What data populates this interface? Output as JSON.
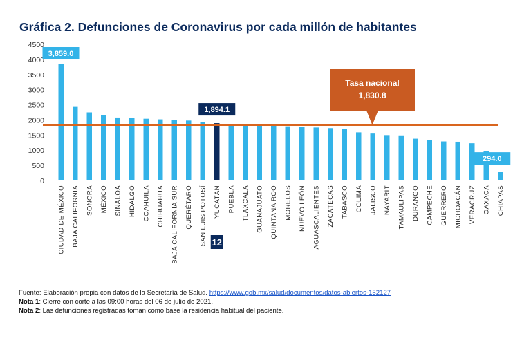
{
  "title": "Gráfica 2. Defunciones de Coronavirus por cada millón de habitantes",
  "colors": {
    "bar": "#33b3e8",
    "highlight_bar": "#0b2a5c",
    "national_line": "#d9651e",
    "national_box": "#c95b22",
    "callout_box": "#33b3e8",
    "title": "#0b2a5c"
  },
  "chart_data": {
    "type": "bar",
    "title": "Gráfica 2. Defunciones de Coronavirus por cada millón de habitantes",
    "xlabel": "",
    "ylabel": "",
    "ylim": [
      0,
      4500
    ],
    "yticks": [
      "0",
      "500",
      "1000",
      "1500",
      "2000",
      "2500",
      "3000",
      "3500",
      "4000",
      "4500"
    ],
    "grid": false,
    "categories": [
      "CIUDAD DE MÉXICO",
      "BAJA CALIFORNIA",
      "SONORA",
      "MÉXICO",
      "SINALOA",
      "HIDALGO",
      "COAHUILA",
      "CHIHUAHUA",
      "BAJA CALIFORNIA SUR",
      "QUERÉTARO",
      "SAN LUIS POTOSÍ",
      "YUCATÁN",
      "PUEBLA",
      "TLAXCALA",
      "GUANAJUATO",
      "QUINTANA ROO",
      "MORELOS",
      "NUEVO LEÓN",
      "AGUASCALIENTES",
      "ZACATECAS",
      "TABASCO",
      "COLIMA",
      "JALISCO",
      "NAYARIT",
      "TAMAULIPAS",
      "DURANGO",
      "CAMPECHE",
      "GUERRERO",
      "MICHOACÁN",
      "VERACRUZ",
      "OAXACA",
      "CHIAPAS"
    ],
    "values": [
      3859.0,
      2430,
      2250,
      2170,
      2080,
      2070,
      2040,
      2020,
      1990,
      1980,
      1920,
      1894.1,
      1840,
      1830,
      1820,
      1820,
      1790,
      1770,
      1750,
      1730,
      1700,
      1590,
      1550,
      1500,
      1490,
      1380,
      1340,
      1290,
      1280,
      1230,
      980,
      294.0
    ],
    "highlight_index": 11,
    "reference_line": {
      "label": "Tasa nacional",
      "value": 1830.8,
      "value_label": "1,830.8"
    },
    "annotations": [
      {
        "index": 0,
        "label": "3,859.0"
      },
      {
        "index": 11,
        "label": "1,894.1"
      },
      {
        "index": 31,
        "label": "294.0"
      }
    ],
    "rank_badge": {
      "index": 11,
      "label": "12"
    }
  },
  "footer": {
    "source_text": "Fuente: Elaboración propia con datos de la Secretaría de Salud. ",
    "source_link": "https://www.gob.mx/salud/documentos/datos-abiertos-152127",
    "note1_label": "Nota 1",
    "note1_text": ": Cierre con corte a las 09:00 horas del 06 de julio de 2021.",
    "note2_label": "Nota 2",
    "note2_text": ": Las defunciones registradas toman como base la residencia habitual del paciente."
  }
}
